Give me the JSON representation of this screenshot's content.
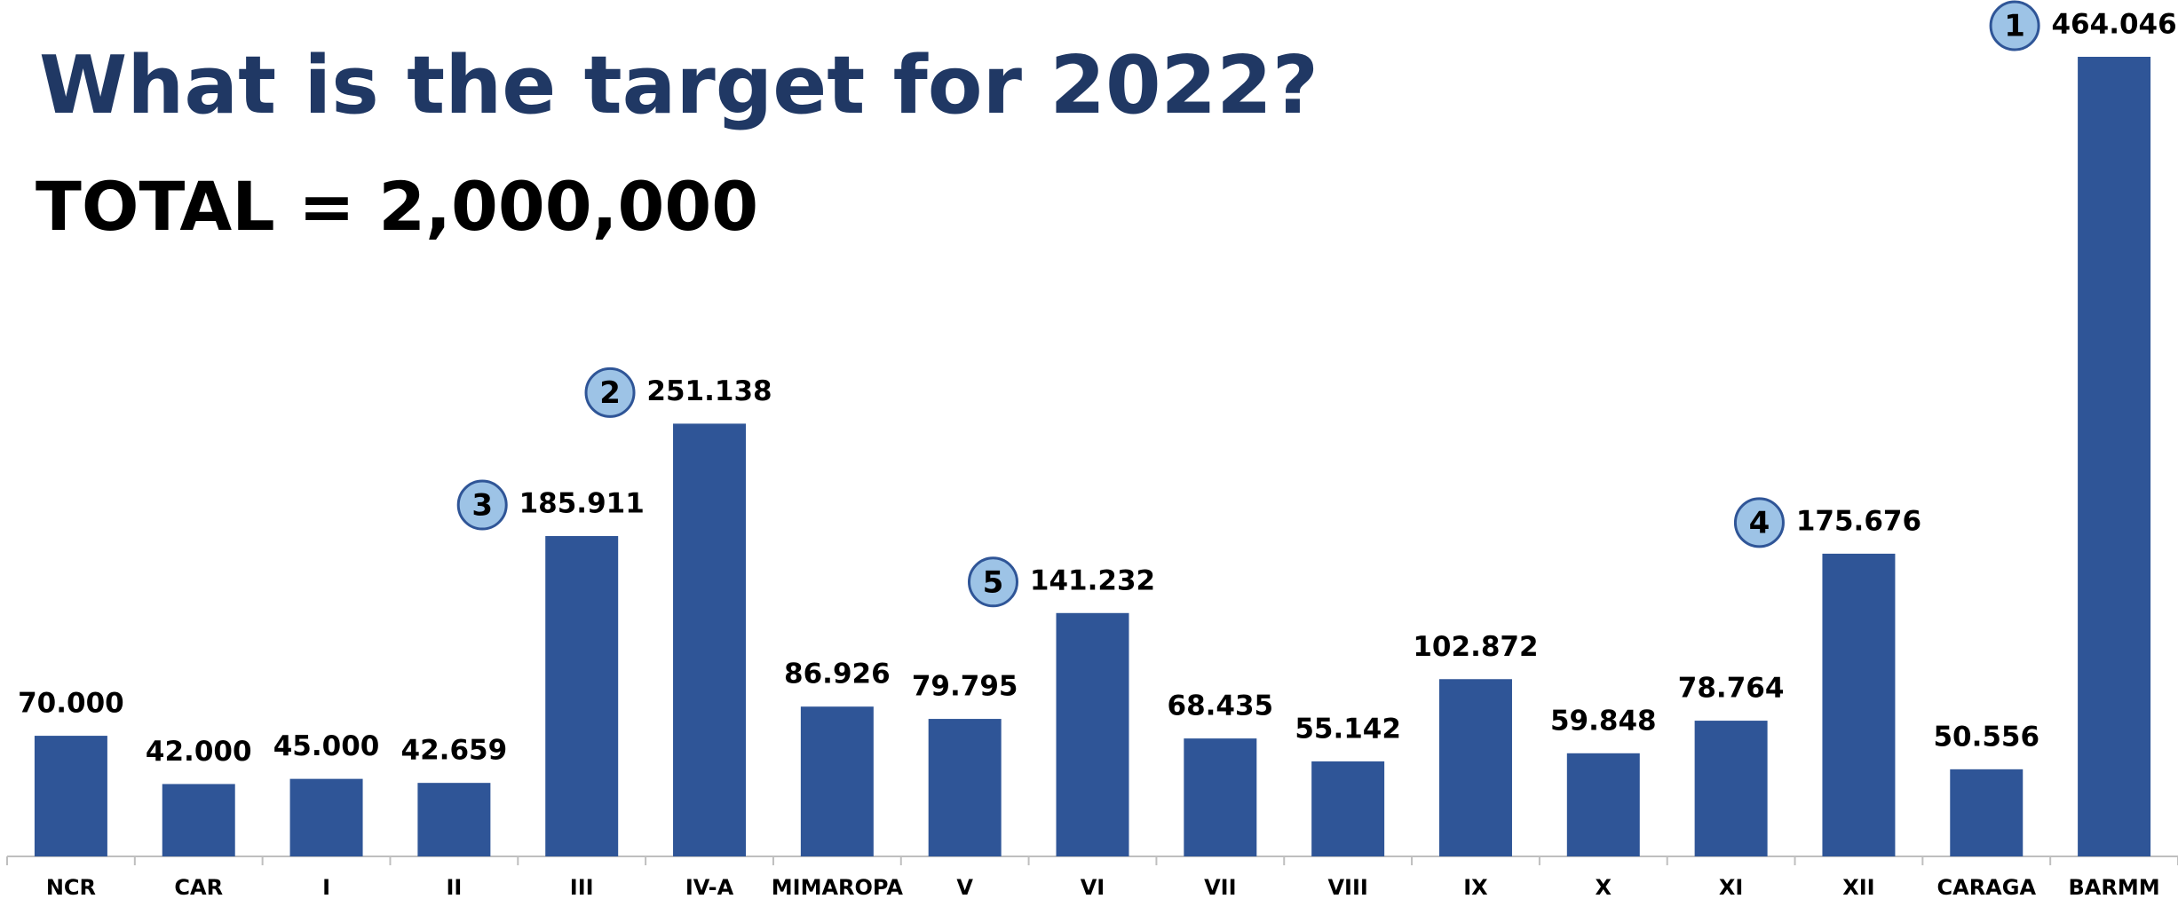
{
  "chart_data": {
    "type": "bar",
    "title": "What is the target for 2022?",
    "subtitle": "TOTAL = 2,000,000",
    "categories": [
      "NCR",
      "CAR",
      "I",
      "II",
      "III",
      "IV-A",
      "MIMAROPA",
      "V",
      "VI",
      "VII",
      "VIII",
      "IX",
      "X",
      "XI",
      "XII",
      "CARAGA",
      "BARMM"
    ],
    "values": [
      70,
      42,
      45,
      42.659,
      185.911,
      251.138,
      86.926,
      79.795,
      141.232,
      68.435,
      55.142,
      102.872,
      59.848,
      78.764,
      175.676,
      50.556,
      464.046
    ],
    "value_labels": [
      "70.000",
      "42.000",
      "45.000",
      "42.659",
      "185.911",
      "251.138",
      "86.926",
      "79.795",
      "141.232",
      "68.435",
      "55.142",
      "102.872",
      "59.848",
      "78.764",
      "175.676",
      "50.556",
      "464.046"
    ],
    "rank_labels": [
      null,
      null,
      null,
      null,
      "3",
      "2",
      null,
      null,
      "5",
      null,
      null,
      null,
      null,
      null,
      "4",
      null,
      "1"
    ],
    "color": "#2f5597"
  }
}
